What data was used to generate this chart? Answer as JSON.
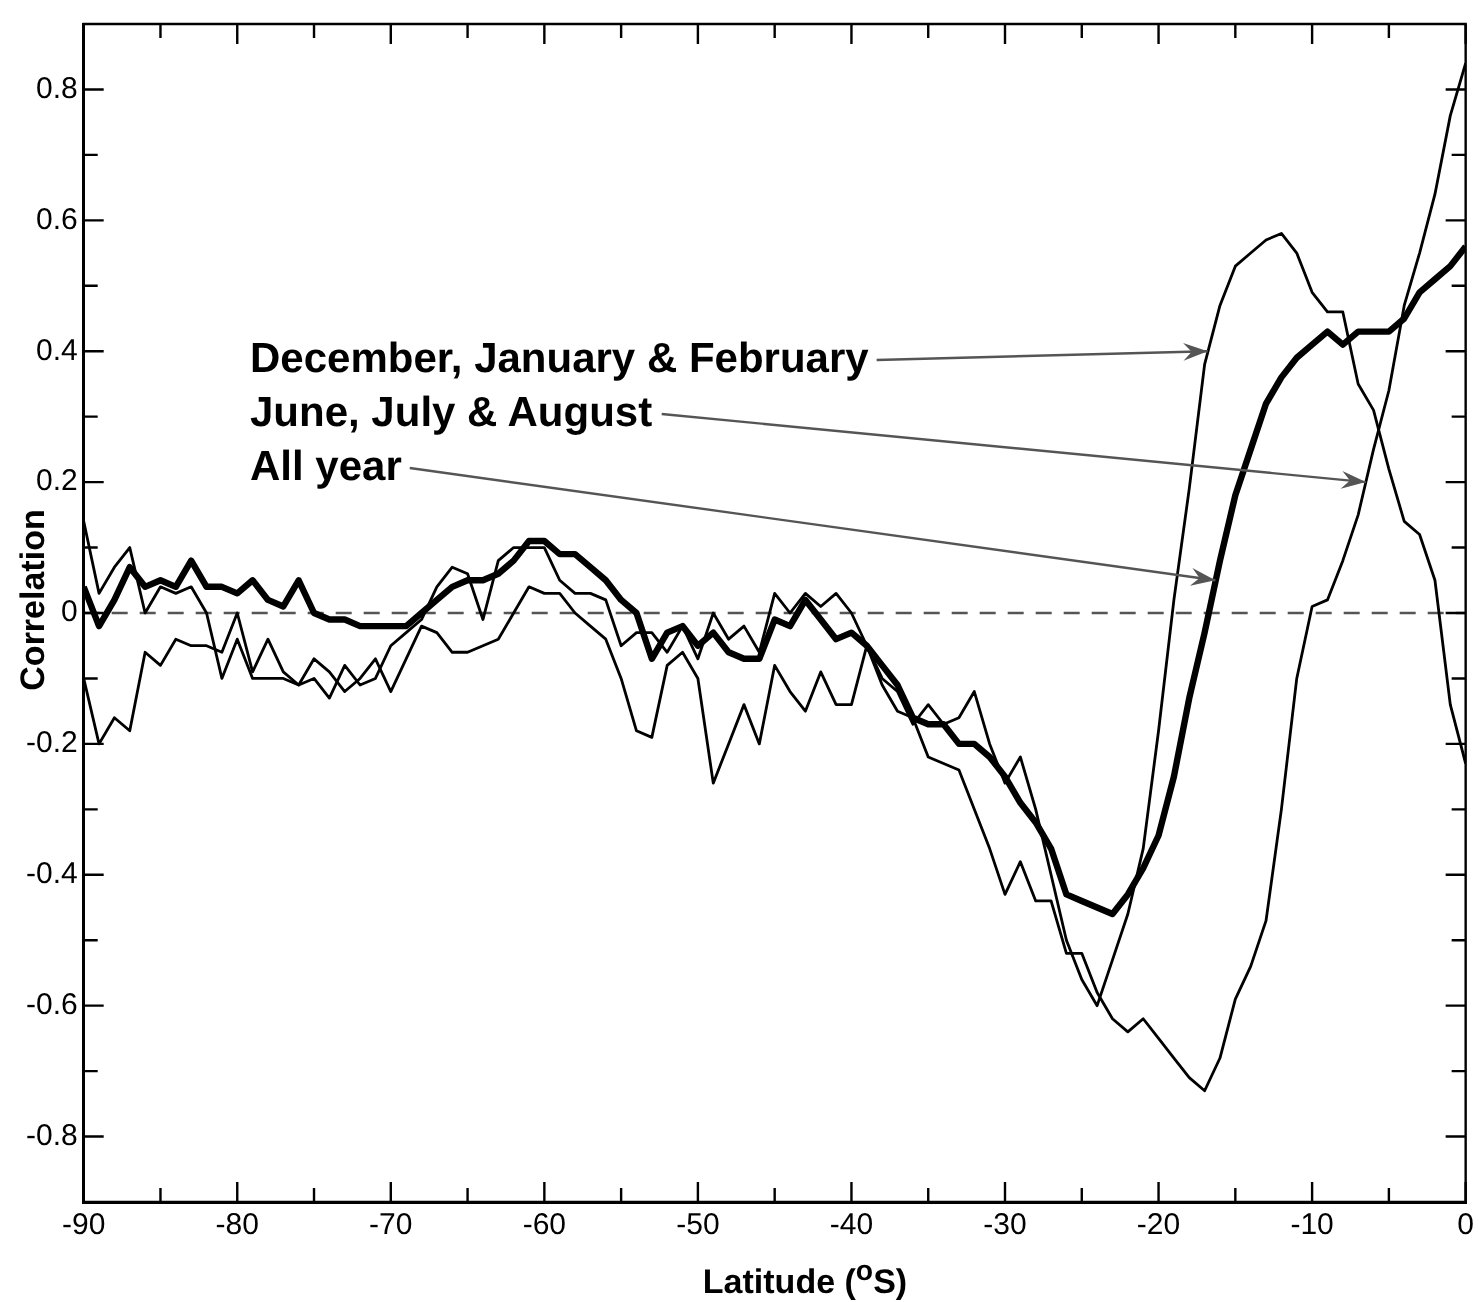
{
  "chart_data": {
    "type": "line",
    "xlabel": "Latitude ($^{o}$S)",
    "ylabel": "Correlation",
    "x": [
      -90,
      -89,
      -88,
      -87,
      -86,
      -85,
      -84,
      -83,
      -82,
      -81,
      -80,
      -79,
      -78,
      -77,
      -76,
      -75,
      -74,
      -73,
      -72,
      -71,
      -70,
      -69,
      -68,
      -67,
      -66,
      -65,
      -64,
      -63,
      -62,
      -61,
      -60,
      -59,
      -58,
      -57,
      -56,
      -55,
      -54,
      -53,
      -52,
      -51,
      -50,
      -49,
      -48,
      -47,
      -46,
      -45,
      -44,
      -43,
      -42,
      -41,
      -40,
      -39,
      -38,
      -37,
      -36,
      -35,
      -34,
      -33,
      -32,
      -31,
      -30,
      -29,
      -28,
      -27,
      -26,
      -25,
      -24,
      -23,
      -22,
      -21,
      -20,
      -19,
      -18,
      -17,
      -16,
      -15,
      -14,
      -13,
      -12,
      -11,
      -10,
      -9,
      -8,
      -7,
      -6,
      -5,
      -4,
      -3,
      -2,
      -1,
      0
    ],
    "series": [
      {
        "color": "#000000",
        "values": [
          0.14,
          0.03,
          0.07,
          0.1,
          0.0,
          0.04,
          0.03,
          0.04,
          0.0,
          -0.1,
          -0.04,
          -0.1,
          -0.1,
          -0.1,
          -0.11,
          -0.1,
          -0.13,
          -0.08,
          -0.11,
          -0.1,
          -0.05,
          -0.03,
          -0.01,
          0.04,
          0.07,
          0.06,
          -0.01,
          0.08,
          0.1,
          0.1,
          0.1,
          0.05,
          0.03,
          0.03,
          0.02,
          -0.05,
          -0.03,
          -0.03,
          -0.06,
          -0.02,
          -0.07,
          0.0,
          -0.04,
          -0.02,
          -0.06,
          0.03,
          0.0,
          0.03,
          0.01,
          0.03,
          0.0,
          -0.05,
          -0.1,
          -0.12,
          -0.17,
          -0.14,
          -0.17,
          -0.16,
          -0.12,
          -0.2,
          -0.26,
          -0.22,
          -0.3,
          -0.4,
          -0.5,
          -0.56,
          -0.6,
          -0.53,
          -0.46,
          -0.36,
          -0.18,
          0.02,
          0.19,
          0.38,
          0.47,
          0.53,
          0.55,
          0.57,
          0.58,
          0.55,
          0.49,
          0.46,
          0.46,
          0.35,
          0.31,
          0.22,
          0.14,
          0.12,
          0.05,
          -0.14,
          -0.23
        ]
      },
      {
        "color": "#000000",
        "values": [
          -0.1,
          -0.2,
          -0.16,
          -0.18,
          -0.06,
          -0.08,
          -0.04,
          -0.05,
          -0.05,
          -0.06,
          0.0,
          -0.09,
          -0.04,
          -0.09,
          -0.11,
          -0.07,
          -0.09,
          -0.12,
          -0.1,
          -0.07,
          -0.12,
          -0.07,
          -0.02,
          -0.03,
          -0.06,
          -0.06,
          -0.05,
          -0.04,
          0.0,
          0.04,
          0.03,
          0.03,
          0.0,
          -0.02,
          -0.04,
          -0.1,
          -0.18,
          -0.19,
          -0.08,
          -0.06,
          -0.1,
          -0.26,
          -0.2,
          -0.14,
          -0.2,
          -0.08,
          -0.12,
          -0.15,
          -0.09,
          -0.14,
          -0.14,
          -0.05,
          -0.11,
          -0.15,
          -0.16,
          -0.22,
          -0.23,
          -0.24,
          -0.3,
          -0.36,
          -0.43,
          -0.38,
          -0.44,
          -0.44,
          -0.52,
          -0.52,
          -0.58,
          -0.62,
          -0.64,
          -0.62,
          -0.65,
          -0.68,
          -0.71,
          -0.73,
          -0.68,
          -0.59,
          -0.54,
          -0.47,
          -0.3,
          -0.1,
          0.01,
          0.02,
          0.08,
          0.15,
          0.25,
          0.34,
          0.47,
          0.55,
          0.64,
          0.76,
          0.84
        ]
      },
      {
        "color": "#000000",
        "values": [
          0.04,
          -0.02,
          0.02,
          0.07,
          0.04,
          0.05,
          0.04,
          0.08,
          0.04,
          0.04,
          0.03,
          0.05,
          0.02,
          0.01,
          0.05,
          0.0,
          -0.01,
          -0.01,
          -0.02,
          -0.02,
          -0.02,
          -0.02,
          0.0,
          0.02,
          0.04,
          0.05,
          0.05,
          0.06,
          0.08,
          0.11,
          0.11,
          0.09,
          0.09,
          0.07,
          0.05,
          0.02,
          0.0,
          -0.07,
          -0.03,
          -0.02,
          -0.05,
          -0.03,
          -0.06,
          -0.07,
          -0.07,
          -0.01,
          -0.02,
          0.02,
          -0.01,
          -0.04,
          -0.03,
          -0.05,
          -0.08,
          -0.11,
          -0.16,
          -0.17,
          -0.17,
          -0.2,
          -0.2,
          -0.22,
          -0.25,
          -0.29,
          -0.32,
          -0.36,
          -0.43,
          -0.44,
          -0.45,
          -0.46,
          -0.43,
          -0.39,
          -0.34,
          -0.25,
          -0.13,
          -0.03,
          0.08,
          0.18,
          0.25,
          0.32,
          0.36,
          0.39,
          0.41,
          0.43,
          0.41,
          0.43,
          0.43,
          0.43,
          0.45,
          0.49,
          0.51,
          0.53,
          0.56
        ]
      }
    ],
    "xlim": [
      -90,
      0
    ],
    "xticks": [
      -90,
      {
        "value": -85,
        "label": null
      },
      -80,
      {
        "value": -75,
        "label": null
      },
      -70,
      {
        "value": -65,
        "label": null
      },
      -60,
      {
        "value": -55,
        "label": null
      },
      -50,
      {
        "value": -45,
        "label": null
      },
      -40,
      {
        "value": -35,
        "label": null
      },
      -30,
      {
        "value": -25,
        "label": null
      },
      -20,
      {
        "value": -15,
        "label": null
      },
      -10,
      {
        "value": -5,
        "label": null
      },
      0
    ],
    "ylim": [
      -0.9,
      0.9
    ],
    "yticks": [
      -0.8,
      {
        "value": -0.7,
        "label": null
      },
      -0.6,
      {
        "value": -0.5,
        "label": null
      },
      -0.4,
      {
        "value": -0.3,
        "label": null
      },
      -0.2,
      {
        "value": -0.1,
        "label": null
      },
      0,
      {
        "value": 0.1,
        "label": null
      },
      0.2,
      {
        "value": 0.3,
        "label": null
      },
      0.4,
      {
        "value": 0.5,
        "label": null
      },
      0.6,
      {
        "value": 0.7,
        "label": null
      },
      0.8
    ],
    "ref_lines": [
      {
        "axis": "y",
        "value": 0,
        "color": "#555555",
        "line_style": "dashed"
      }
    ],
    "annotations": [
      {
        "text": "December, January & February",
        "x": -16.8,
        "y": 0.4
      },
      {
        "text": "June, July & August",
        "x": -6.5,
        "y": 0.2
      },
      {
        "text": "All year",
        "x": -16.3,
        "y": 0.05
      }
    ],
    "grid": false,
    "legend": false,
    "marker": "none",
    "line_style": "solid"
  }
}
